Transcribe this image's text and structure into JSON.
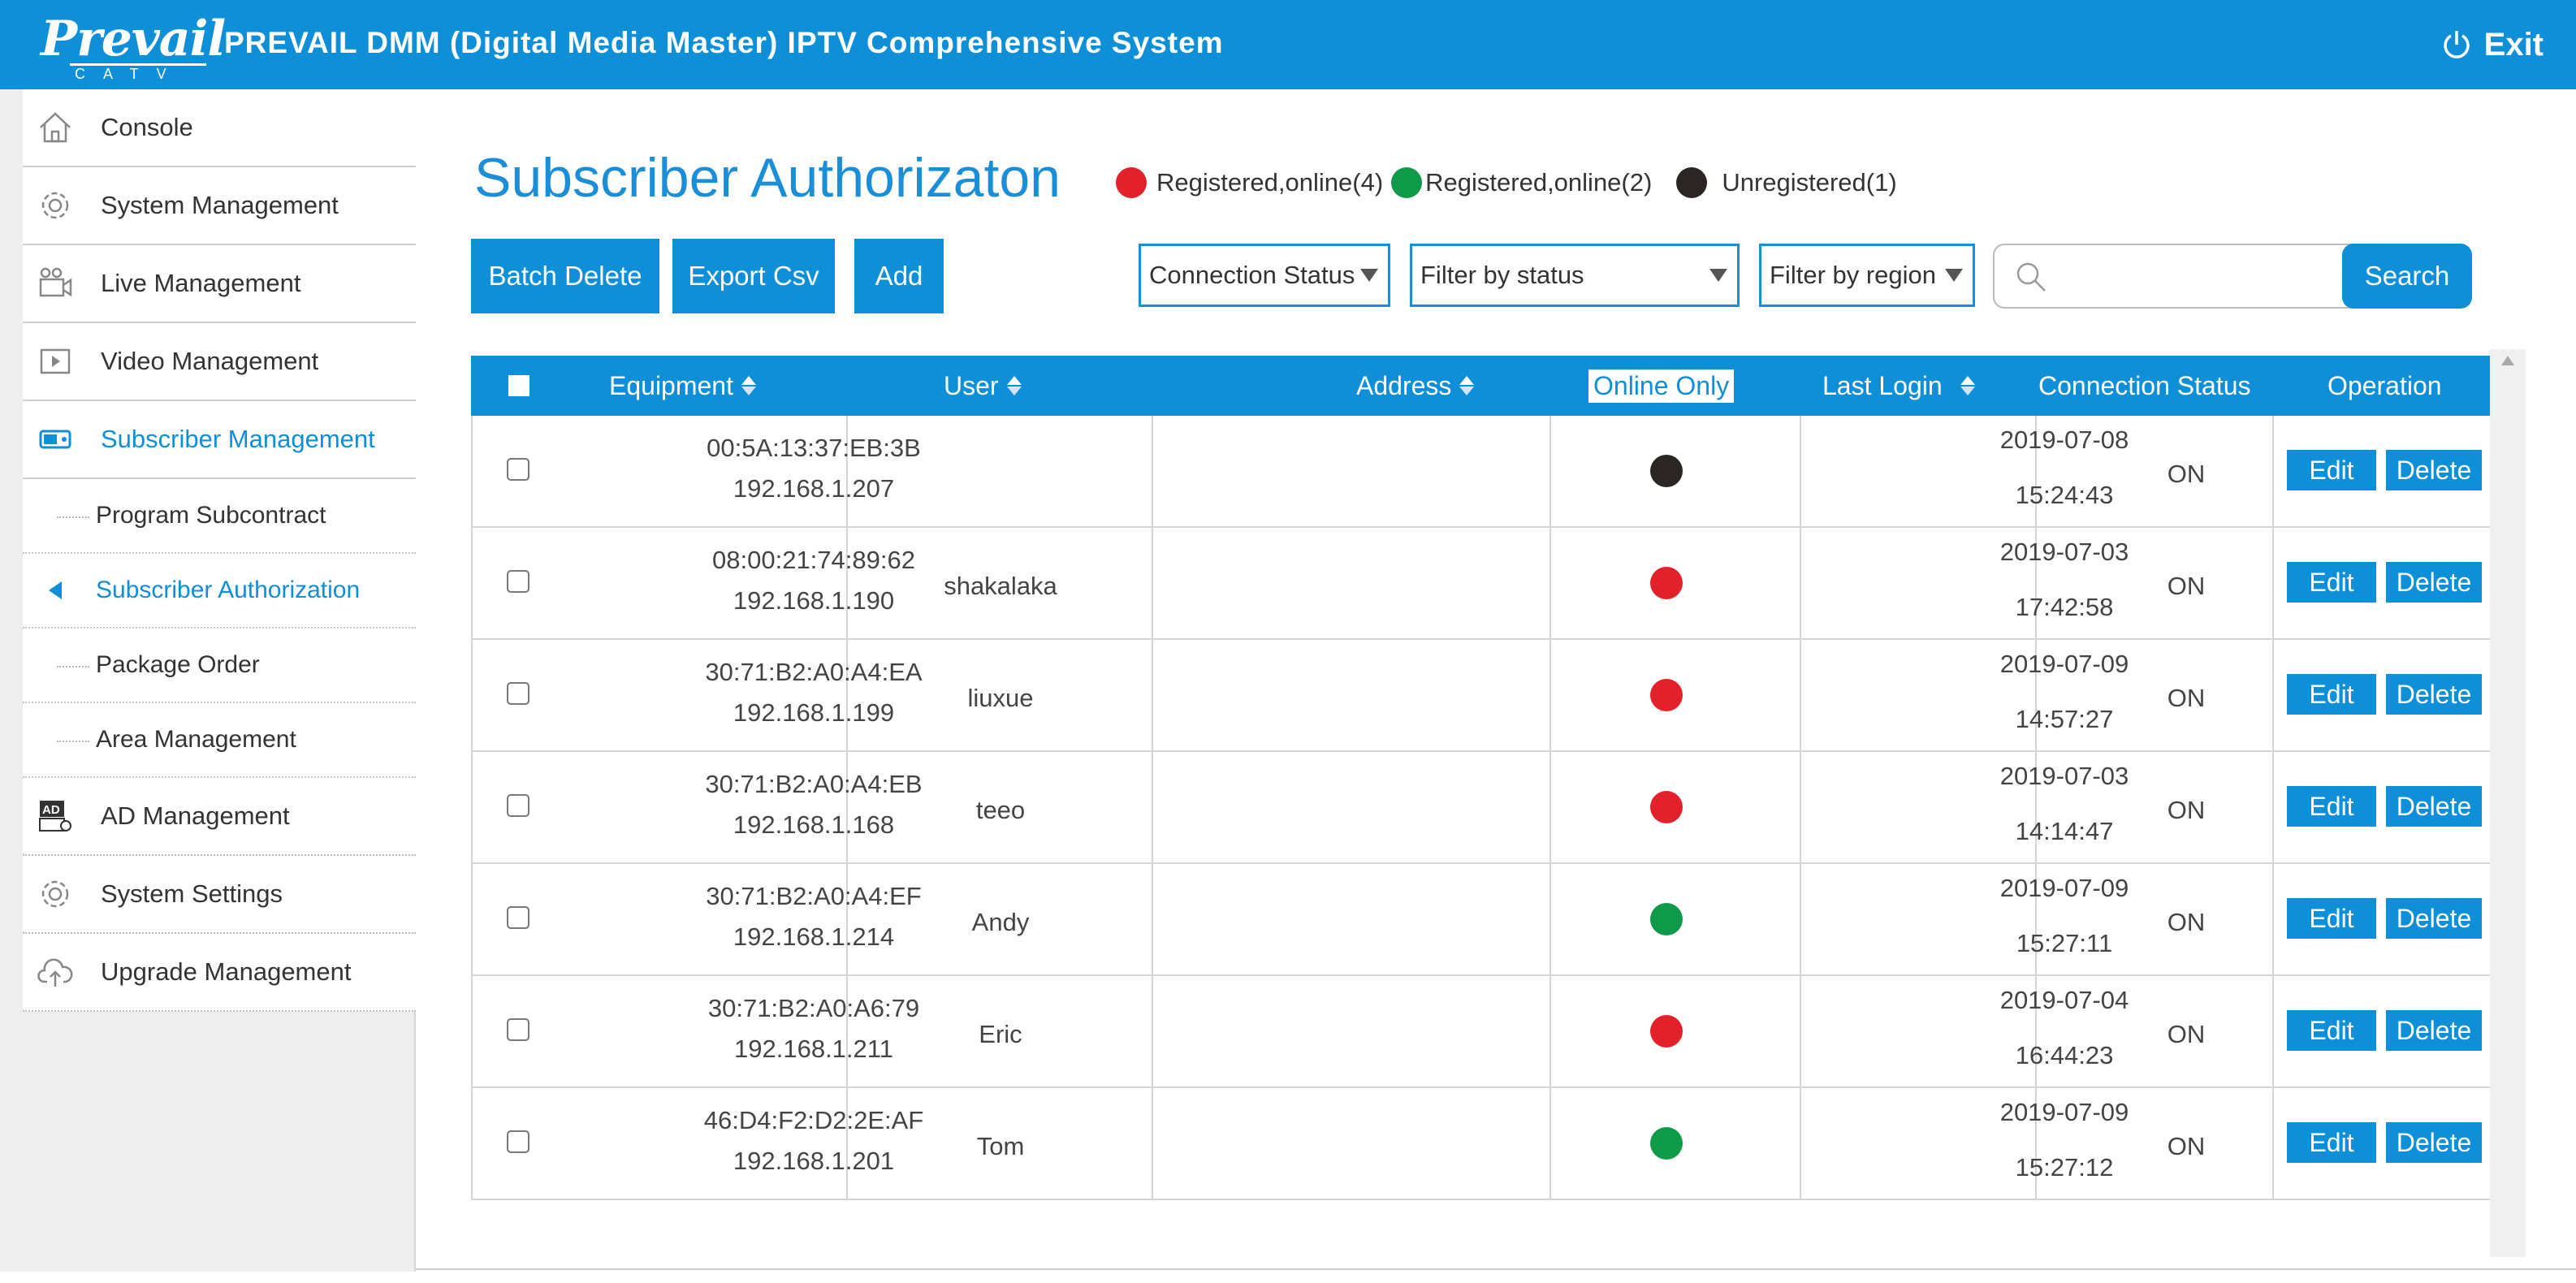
{
  "header": {
    "logo_word": "Prevail",
    "logo_sub": "CATV",
    "title": "PREVAIL DMM (Digital Media Master) IPTV Comprehensive System",
    "exit_label": "Exit"
  },
  "sidebar": {
    "items": [
      {
        "label": "Console",
        "icon": "home-icon"
      },
      {
        "label": "System Management",
        "icon": "gear-icon"
      },
      {
        "label": "Live Management",
        "icon": "camera-icon"
      },
      {
        "label": "Video Management",
        "icon": "video-icon"
      },
      {
        "label": "Subscriber Management",
        "icon": "subscriber-icon"
      }
    ],
    "sub_items": [
      {
        "label": "Program Subcontract"
      },
      {
        "label": "Subscriber Authorization"
      },
      {
        "label": "Package Order"
      },
      {
        "label": "Area Management"
      }
    ],
    "items_after": [
      {
        "label": "AD Management",
        "icon": "ad-icon"
      },
      {
        "label": "System Settings",
        "icon": "settings-icon"
      },
      {
        "label": "Upgrade Management",
        "icon": "cloud-upload-icon"
      }
    ]
  },
  "main": {
    "title": "Subscriber Authorizaton",
    "legend": [
      {
        "label": "Registered,online(4)",
        "color": "#e3212b"
      },
      {
        "label": "Registered,online(2)",
        "color": "#0f9a4a"
      },
      {
        "label": "Unregistered(1)",
        "color": "#2b2624"
      }
    ],
    "buttons": {
      "batch_delete": "Batch Delete",
      "export_csv": "Export Csv",
      "add": "Add"
    },
    "filters": {
      "connection_status": "Connection Status",
      "status": "Filter by status",
      "region": "Filter by region"
    },
    "search": {
      "value": "",
      "button": "Search"
    },
    "table": {
      "headers": {
        "equipment": "Equipment",
        "user": "User",
        "address": "Address",
        "online_only": "Online Only",
        "last_login": "Last Login",
        "connection_status": "Connection Status",
        "operation": "Operation"
      },
      "edit_label": "Edit",
      "delete_label": "Delete",
      "rows": [
        {
          "mac": "00:5A:13:37:EB:3B",
          "ip": "192.168.1.207",
          "user": "",
          "address": "",
          "status_color": "#2b2624",
          "date": "2019-07-08",
          "time": "15:24:43",
          "conn": "ON"
        },
        {
          "mac": "08:00:21:74:89:62",
          "ip": "192.168.1.190",
          "user": "shakalaka",
          "address": "",
          "status_color": "#e3212b",
          "date": "2019-07-03",
          "time": "17:42:58",
          "conn": "ON"
        },
        {
          "mac": "30:71:B2:A0:A4:EA",
          "ip": "192.168.1.199",
          "user": "liuxue",
          "address": "",
          "status_color": "#e3212b",
          "date": "2019-07-09",
          "time": "14:57:27",
          "conn": "ON"
        },
        {
          "mac": "30:71:B2:A0:A4:EB",
          "ip": "192.168.1.168",
          "user": "teeo",
          "address": "",
          "status_color": "#e3212b",
          "date": "2019-07-03",
          "time": "14:14:47",
          "conn": "ON"
        },
        {
          "mac": "30:71:B2:A0:A4:EF",
          "ip": "192.168.1.214",
          "user": "Andy",
          "address": "",
          "status_color": "#0f9a4a",
          "date": "2019-07-09",
          "time": "15:27:11",
          "conn": "ON"
        },
        {
          "mac": "30:71:B2:A0:A6:79",
          "ip": "192.168.1.211",
          "user": "Eric",
          "address": "",
          "status_color": "#e3212b",
          "date": "2019-07-04",
          "time": "16:44:23",
          "conn": "ON"
        },
        {
          "mac": "46:D4:F2:D2:2E:AF",
          "ip": "192.168.1.201",
          "user": "Tom",
          "address": "",
          "status_color": "#0f9a4a",
          "date": "2019-07-09",
          "time": "15:27:12",
          "conn": "ON"
        }
      ]
    }
  }
}
